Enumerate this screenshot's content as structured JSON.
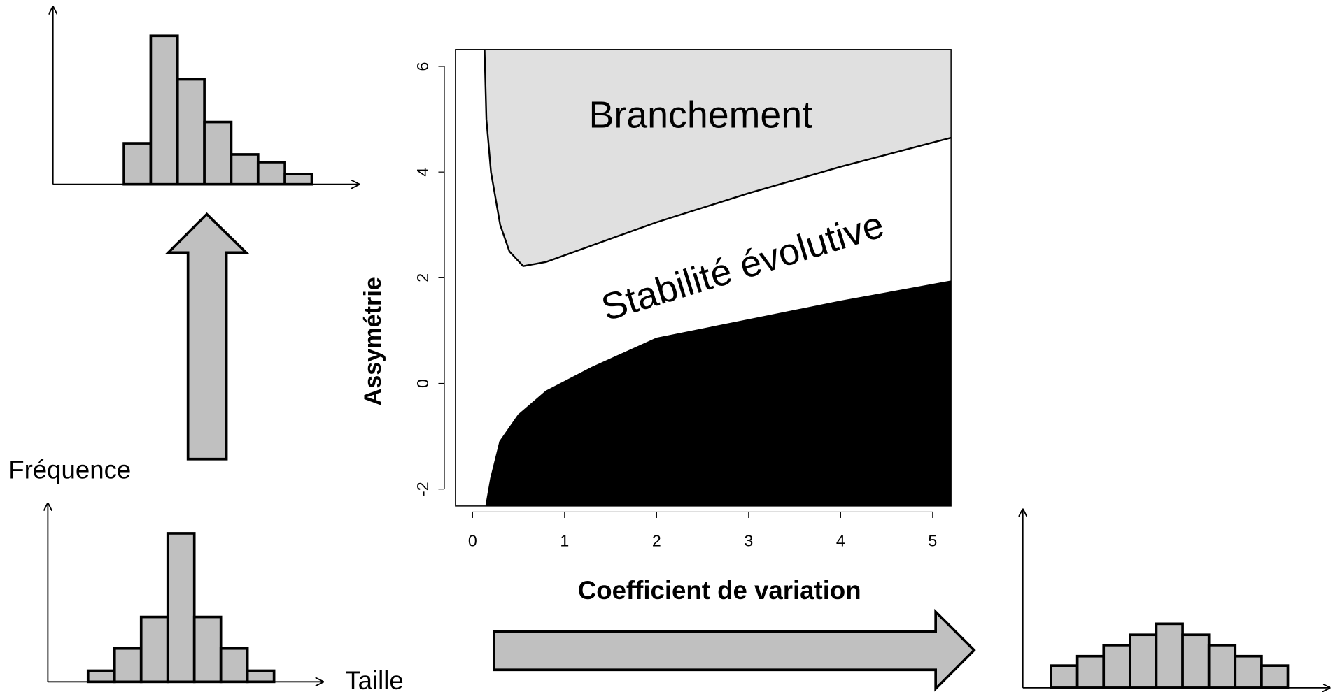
{
  "chart_data": {
    "type": "region",
    "xlabel": "Coefficient de variation",
    "ylabel": "Assymétrie",
    "xlim": [
      -0.186,
      5.2
    ],
    "ylim": [
      -2.32,
      6.32
    ],
    "xticks": [
      0,
      1,
      2,
      3,
      4,
      5
    ],
    "yticks": [
      -2,
      0,
      2,
      4,
      6
    ],
    "regions": [
      {
        "name": "Branchement",
        "color": "#e0e0e0",
        "fill_to": "top",
        "x": [
          0.13,
          0.15,
          0.2,
          0.3,
          0.4,
          0.55,
          0.8,
          1.2,
          2,
          3,
          4,
          5.2
        ],
        "y": [
          6.32,
          5,
          4,
          3,
          2.5,
          2.22,
          2.3,
          2.55,
          3.05,
          3.6,
          4.1,
          4.65
        ]
      },
      {
        "name": "Stabilité évolutive",
        "color": "#ffffff",
        "fill_to": "none",
        "x": [],
        "y": []
      },
      {
        "name": null,
        "color": "#000000",
        "fill_to": "bottom",
        "x": [
          0.15,
          0.2,
          0.3,
          0.5,
          0.8,
          1.3,
          2,
          3,
          4,
          5.2
        ],
        "y": [
          -2.3,
          -1.8,
          -1.1,
          -0.6,
          -0.15,
          0.3,
          0.85,
          1.2,
          1.55,
          1.93
        ]
      }
    ]
  },
  "histograms": {
    "ylabel": "Fréquence",
    "xlabel": "Taille",
    "color": "#c0c0c0",
    "items": [
      {
        "values": [
          13,
          39,
          76,
          174,
          76,
          39,
          13
        ]
      },
      {
        "values": [
          48,
          174,
          123,
          73,
          35,
          26,
          12
        ]
      },
      {
        "values": [
          26,
          37,
          50,
          62,
          75,
          62,
          50,
          37,
          26
        ]
      }
    ]
  }
}
